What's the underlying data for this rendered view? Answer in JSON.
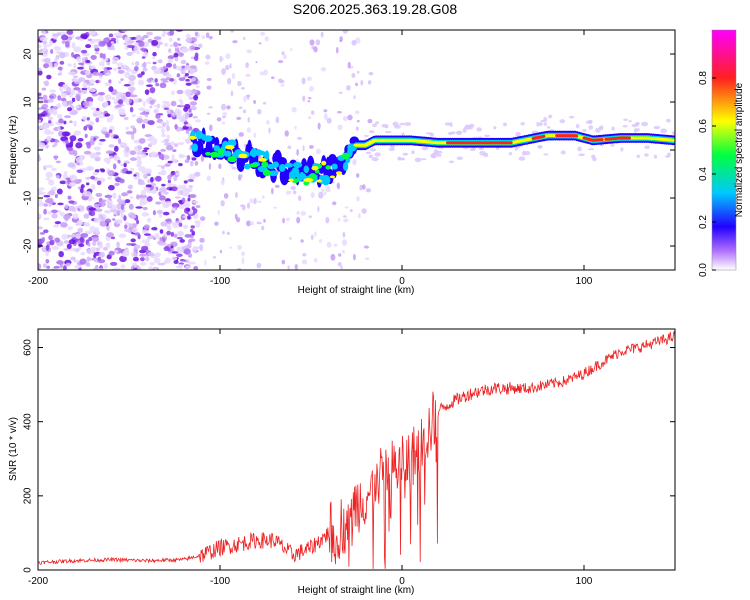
{
  "figure": {
    "title": "S206.2025.363.19.28.G08"
  },
  "chart_data": [
    {
      "type": "heatmap",
      "title": "S206.2025.363.19.28.G08",
      "xlabel": "Height of straight line (km)",
      "ylabel": "Frequency (Hz)",
      "xlim": [
        -200,
        150
      ],
      "ylim": [
        -25,
        25
      ],
      "xticks": [
        -200,
        -100,
        0,
        100
      ],
      "yticks": [
        -20,
        -10,
        0,
        10,
        20
      ],
      "colorbar": {
        "label": "Normalized spectral amplitude",
        "range": [
          0,
          1
        ],
        "ticks": [
          0.0,
          0.2,
          0.4,
          0.6,
          0.8
        ],
        "colors": [
          "#ffffff",
          "#a855f7",
          "#2200ff",
          "#00c8ff",
          "#00ff40",
          "#ffff00",
          "#ff2020",
          "#ff00ff"
        ]
      },
      "ridge": [
        {
          "x": -115,
          "y": 2
        },
        {
          "x": -105,
          "y": 1
        },
        {
          "x": -95,
          "y": 0
        },
        {
          "x": -85,
          "y": -1.5
        },
        {
          "x": -75,
          "y": -3
        },
        {
          "x": -65,
          "y": -4
        },
        {
          "x": -55,
          "y": -5
        },
        {
          "x": -45,
          "y": -5
        },
        {
          "x": -35,
          "y": -3
        },
        {
          "x": -28,
          "y": -1
        },
        {
          "x": -25,
          "y": 1
        },
        {
          "x": -20,
          "y": 1
        },
        {
          "x": -15,
          "y": 2
        },
        {
          "x": -5,
          "y": 2
        },
        {
          "x": 5,
          "y": 2
        },
        {
          "x": 20,
          "y": 1.5
        },
        {
          "x": 40,
          "y": 1.5
        },
        {
          "x": 60,
          "y": 1.5
        },
        {
          "x": 80,
          "y": 3
        },
        {
          "x": 95,
          "y": 3
        },
        {
          "x": 105,
          "y": 2
        },
        {
          "x": 120,
          "y": 2.5
        },
        {
          "x": 135,
          "y": 2.5
        },
        {
          "x": 150,
          "y": 2
        }
      ]
    },
    {
      "type": "line",
      "xlabel": "Height of straight line (km)",
      "ylabel": "SNR (10 * v/v)",
      "xlim": [
        -200,
        150
      ],
      "ylim": [
        0,
        650
      ],
      "xticks": [
        -200,
        -100,
        0,
        100
      ],
      "yticks": [
        0,
        200,
        400,
        600
      ],
      "series": [
        {
          "name": "SNR",
          "color": "#ee2222",
          "x": [
            -200,
            -180,
            -160,
            -140,
            -120,
            -110,
            -100,
            -90,
            -80,
            -70,
            -60,
            -50,
            -40,
            -30,
            -25,
            -20,
            -15,
            -10,
            -5,
            0,
            5,
            10,
            15,
            20,
            30,
            40,
            50,
            60,
            70,
            80,
            90,
            100,
            110,
            120,
            130,
            140,
            150
          ],
          "y": [
            20,
            25,
            28,
            25,
            28,
            40,
            60,
            70,
            80,
            80,
            40,
            60,
            100,
            130,
            180,
            200,
            220,
            260,
            270,
            290,
            300,
            330,
            380,
            430,
            460,
            480,
            490,
            490,
            490,
            500,
            510,
            530,
            560,
            590,
            600,
            615,
            630
          ]
        }
      ]
    }
  ]
}
